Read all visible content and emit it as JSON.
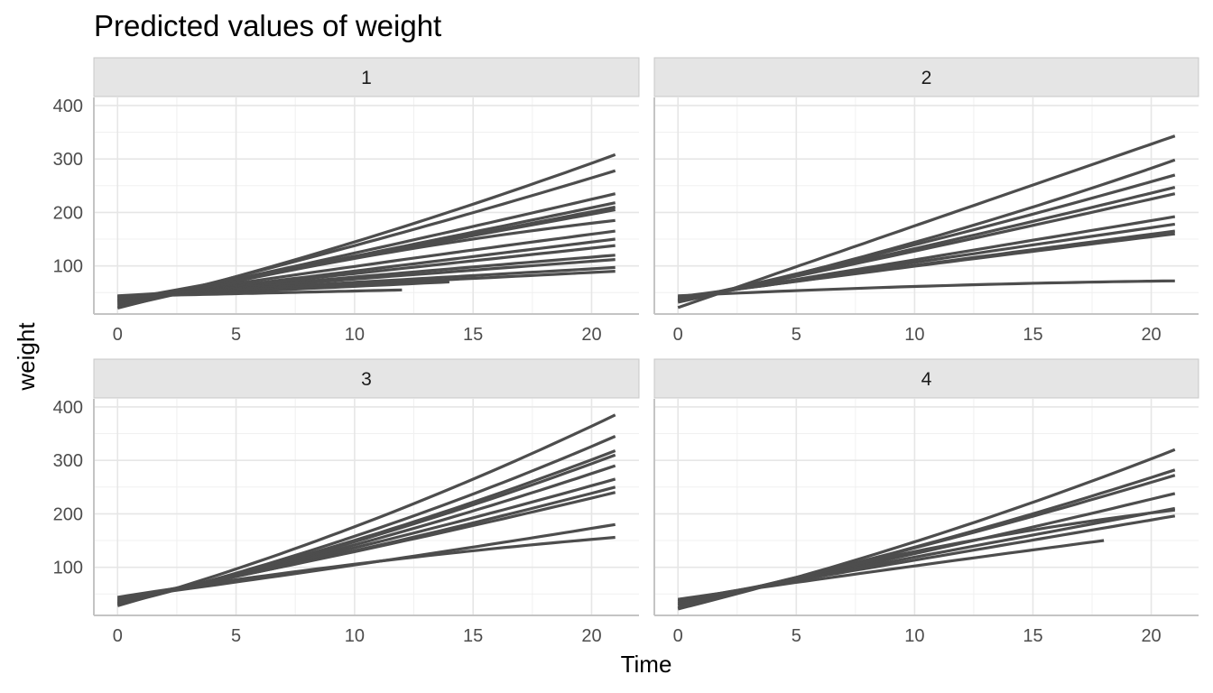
{
  "chart_data": {
    "type": "line",
    "title": "Predicted values of weight",
    "xlabel": "Time",
    "ylabel": "weight",
    "xlim": [
      -1,
      22
    ],
    "ylim": [
      10,
      415
    ],
    "x_ticks": [
      0,
      5,
      10,
      15,
      20
    ],
    "y_ticks": [
      100,
      200,
      300,
      400
    ],
    "grid": true,
    "line_color": "#4d4d4d",
    "strip_color": "#e5e5e5",
    "panels": [
      {
        "label": "1",
        "series": [
          {
            "x": [
              0,
              21
            ],
            "y": [
              21,
              308
            ],
            "curve": 0.18
          },
          {
            "x": [
              0,
              21
            ],
            "y": [
              25,
              278
            ],
            "curve": 0.12
          },
          {
            "x": [
              0,
              21
            ],
            "y": [
              28,
              235
            ],
            "curve": 0.05
          },
          {
            "x": [
              0,
              21
            ],
            "y": [
              30,
              218
            ],
            "curve": 0.03
          },
          {
            "x": [
              0,
              21
            ],
            "y": [
              32,
              210
            ],
            "curve": 0.02
          },
          {
            "x": [
              0,
              21
            ],
            "y": [
              35,
              205
            ],
            "curve": 0.0
          },
          {
            "x": [
              0,
              21
            ],
            "y": [
              22,
              185
            ],
            "curve": -0.35
          },
          {
            "x": [
              0,
              21
            ],
            "y": [
              34,
              165
            ],
            "curve": -0.08
          },
          {
            "x": [
              0,
              21
            ],
            "y": [
              36,
              150
            ],
            "curve": 0.0
          },
          {
            "x": [
              0,
              21
            ],
            "y": [
              38,
              138
            ],
            "curve": 0.0
          },
          {
            "x": [
              0,
              21
            ],
            "y": [
              40,
              120
            ],
            "curve": -0.05
          },
          {
            "x": [
              0,
              21
            ],
            "y": [
              42,
              112
            ],
            "curve": 0.0
          },
          {
            "x": [
              0,
              21
            ],
            "y": [
              44,
              97
            ],
            "curve": 0.0
          },
          {
            "x": [
              0,
              21
            ],
            "y": [
              43,
              90
            ],
            "curve": 0.0
          },
          {
            "x": [
              0,
              14
            ],
            "y": [
              41,
              70
            ],
            "curve": 0.0
          },
          {
            "x": [
              0,
              12
            ],
            "y": [
              43,
              55
            ],
            "curve": 0.0
          }
        ]
      },
      {
        "label": "2",
        "series": [
          {
            "x": [
              0,
              21
            ],
            "y": [
              22,
              343
            ],
            "curve": 0.0
          },
          {
            "x": [
              0,
              21
            ],
            "y": [
              32,
              298
            ],
            "curve": 0.22
          },
          {
            "x": [
              0,
              21
            ],
            "y": [
              34,
              270
            ],
            "curve": 0.12
          },
          {
            "x": [
              0,
              21
            ],
            "y": [
              36,
              247
            ],
            "curve": 0.08
          },
          {
            "x": [
              0,
              21
            ],
            "y": [
              35,
              235
            ],
            "curve": 0.05
          },
          {
            "x": [
              0,
              21
            ],
            "y": [
              38,
              192
            ],
            "curve": 0.0
          },
          {
            "x": [
              0,
              21
            ],
            "y": [
              40,
              178
            ],
            "curve": -0.02
          },
          {
            "x": [
              0,
              21
            ],
            "y": [
              41,
              165
            ],
            "curve": -0.03
          },
          {
            "x": [
              0,
              21
            ],
            "y": [
              42,
              160
            ],
            "curve": -0.04
          },
          {
            "x": [
              0,
              21
            ],
            "y": [
              44,
              72
            ],
            "curve": -0.6
          }
        ]
      },
      {
        "label": "3",
        "series": [
          {
            "x": [
              0,
              21
            ],
            "y": [
              28,
              385
            ],
            "curve": 0.25
          },
          {
            "x": [
              0,
              21
            ],
            "y": [
              30,
              345
            ],
            "curve": 0.28
          },
          {
            "x": [
              0,
              21
            ],
            "y": [
              32,
              318
            ],
            "curve": 0.25
          },
          {
            "x": [
              0,
              21
            ],
            "y": [
              33,
              310
            ],
            "curve": 0.25
          },
          {
            "x": [
              0,
              21
            ],
            "y": [
              34,
              290
            ],
            "curve": 0.22
          },
          {
            "x": [
              0,
              21
            ],
            "y": [
              36,
              265
            ],
            "curve": 0.15
          },
          {
            "x": [
              0,
              21
            ],
            "y": [
              38,
              250
            ],
            "curve": 0.15
          },
          {
            "x": [
              0,
              21
            ],
            "y": [
              40,
              240
            ],
            "curve": 0.12
          },
          {
            "x": [
              0,
              21
            ],
            "y": [
              42,
              180
            ],
            "curve": 0.1
          },
          {
            "x": [
              0,
              21
            ],
            "y": [
              44,
              156
            ],
            "curve": -0.3
          }
        ]
      },
      {
        "label": "4",
        "series": [
          {
            "x": [
              0,
              21
            ],
            "y": [
              22,
              320
            ],
            "curve": 0.22
          },
          {
            "x": [
              0,
              21
            ],
            "y": [
              28,
              282
            ],
            "curve": 0.18
          },
          {
            "x": [
              0,
              21
            ],
            "y": [
              30,
              272
            ],
            "curve": 0.15
          },
          {
            "x": [
              0,
              21
            ],
            "y": [
              33,
              238
            ],
            "curve": 0.1
          },
          {
            "x": [
              0,
              21
            ],
            "y": [
              24,
              207
            ],
            "curve": -0.4
          },
          {
            "x": [
              0,
              21
            ],
            "y": [
              36,
              210
            ],
            "curve": 0.0
          },
          {
            "x": [
              0,
              21
            ],
            "y": [
              38,
              196
            ],
            "curve": 0.0
          },
          {
            "x": [
              0,
              18
            ],
            "y": [
              40,
              150
            ],
            "curve": -0.05
          }
        ]
      }
    ]
  }
}
